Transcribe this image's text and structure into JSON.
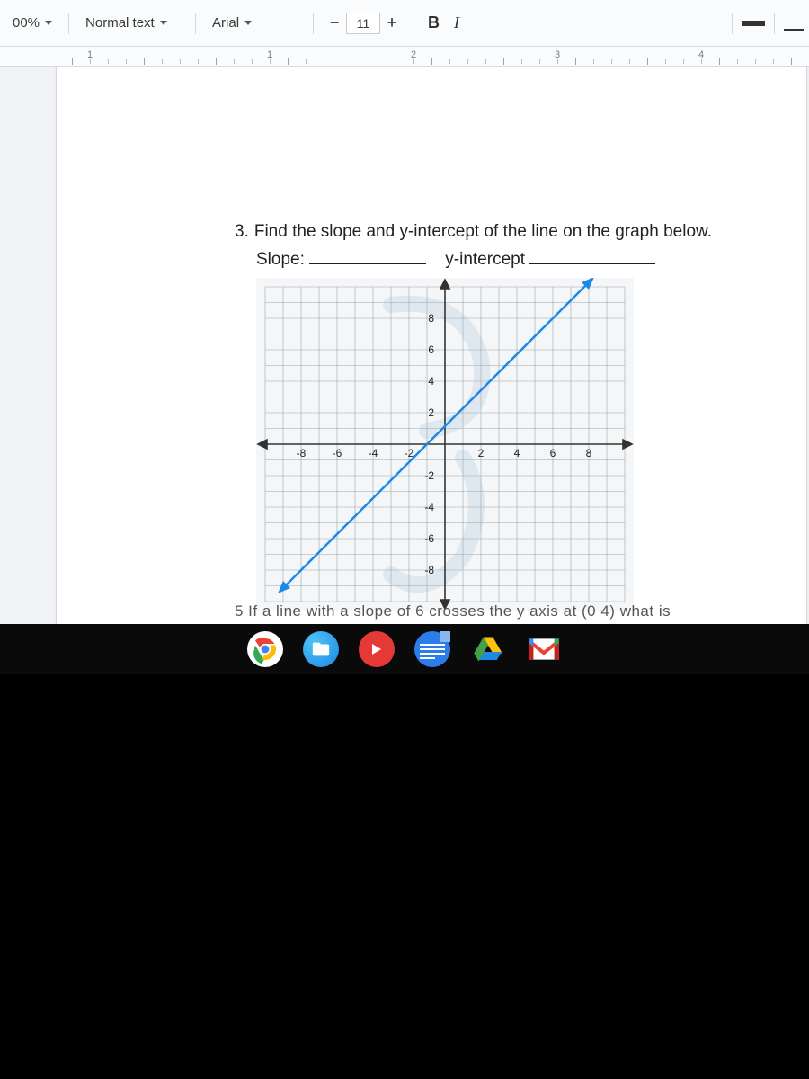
{
  "toolbar": {
    "zoom": "00%",
    "style_label": "Normal text",
    "font_label": "Arial",
    "font_size": "11"
  },
  "ruler": {
    "numbers": [
      1,
      1,
      2,
      3,
      4
    ],
    "positions": [
      20,
      220,
      380,
      540,
      700
    ]
  },
  "question": {
    "number": "3.",
    "prompt": "Find the slope and y-intercept of the line on the graph below.",
    "slope_label": "Slope:",
    "yint_label": "y-intercept"
  },
  "graph": {
    "type": "line",
    "x_ticks": [
      -8,
      -6,
      -4,
      -2,
      2,
      4,
      6,
      8
    ],
    "y_ticks": [
      8,
      6,
      4,
      2,
      -2,
      -4,
      -6,
      -8
    ],
    "xlim": [
      -10,
      10
    ],
    "ylim": [
      -10,
      10
    ],
    "grid_step": 1,
    "line_points": [
      [
        -9,
        -8
      ],
      [
        8,
        9
      ]
    ],
    "line_color": "#1e88e5",
    "line_width": 2.5,
    "grid_color": "#9aa6ad",
    "axis_color": "#333333",
    "background_color": "#f4f6f8",
    "watermark_color": "#b9cfe0",
    "tick_fontsize": 12,
    "arrow_size": 7
  },
  "partial_next": "5   If a line with a slope of 6 crosses the y axis at (0  4)  what is",
  "shelf": {
    "items": [
      "chrome",
      "files",
      "youtube",
      "docs",
      "drive",
      "gmail"
    ]
  }
}
